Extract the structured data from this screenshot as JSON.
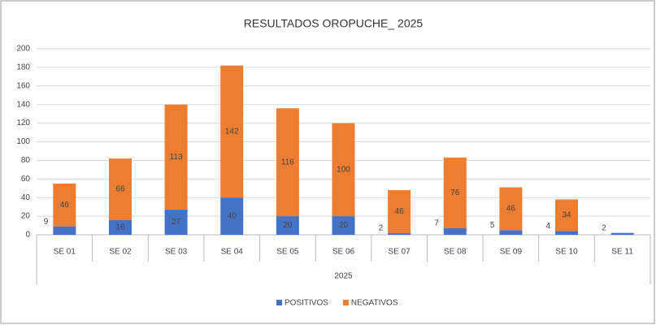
{
  "chart_data": {
    "type": "stacked-bar",
    "title": "RESULTADOS OROPUCHE_ 2025",
    "group_label": "2025",
    "categories": [
      "SE 01",
      "SE 02",
      "SE 03",
      "SE 04",
      "SE 05",
      "SE 06",
      "SE 07",
      "SE 08",
      "SE 09",
      "SE 10",
      "SE 11"
    ],
    "series": [
      {
        "name": "POSITIVOS",
        "color": "#4472c4",
        "values": [
          9,
          16,
          27,
          40,
          20,
          20,
          2,
          7,
          5,
          4,
          2
        ]
      },
      {
        "name": "NEGATIVOS",
        "color": "#ed7d31",
        "values": [
          46,
          66,
          113,
          142,
          116,
          100,
          46,
          76,
          46,
          34,
          0
        ]
      }
    ],
    "ylim": [
      0,
      200
    ],
    "yticks": [
      0,
      20,
      40,
      60,
      80,
      100,
      120,
      140,
      160,
      180,
      200
    ],
    "grid": true,
    "legend": "bottom"
  }
}
